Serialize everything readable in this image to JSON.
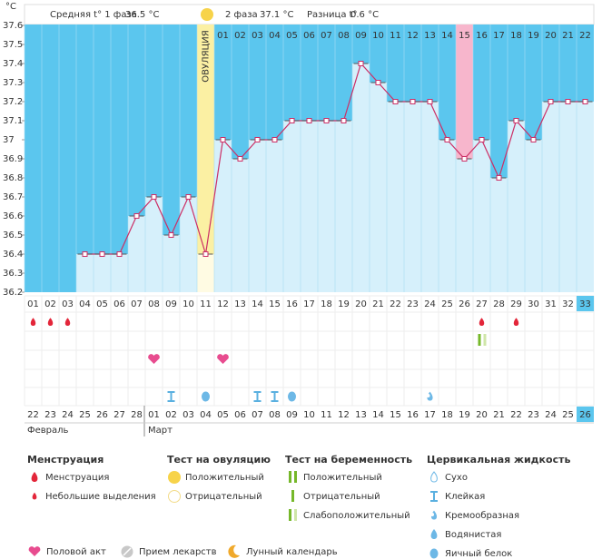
{
  "header": {
    "phase1_label": "Средняя t° 1 фаза",
    "phase1_value": "36.5 °C",
    "phase2_label": "2 фаза",
    "phase2_value": "37.1 °C",
    "diff_label": "Разница t°",
    "diff_value": "0.6 °C"
  },
  "chart_data": {
    "type": "line",
    "y_unit": "°C",
    "ovulation_label": "ОВУЛЯЦИЯ",
    "ovulation_day": "11",
    "highlight_day": "26",
    "today_day": "33",
    "today_date": "26",
    "categories": [
      "01",
      "02",
      "03",
      "04",
      "05",
      "06",
      "07",
      "08",
      "09",
      "10",
      "11",
      "12",
      "13",
      "14",
      "15",
      "16",
      "17",
      "18",
      "19",
      "20",
      "21",
      "22",
      "23",
      "24",
      "25",
      "26",
      "27",
      "28",
      "29",
      "30",
      "31",
      "32",
      "33"
    ],
    "dpo_labels": [
      null,
      null,
      null,
      null,
      null,
      null,
      null,
      null,
      null,
      null,
      null,
      "01",
      "02",
      "03",
      "04",
      "05",
      "06",
      "07",
      "08",
      "09",
      "10",
      "11",
      "12",
      "13",
      "14",
      "15",
      "16",
      "17",
      "18",
      "19",
      "20",
      "21",
      "22"
    ],
    "series": [
      {
        "name": "Температура",
        "color": "#cc2f66",
        "values": [
          null,
          null,
          null,
          36.4,
          36.4,
          36.4,
          36.6,
          36.7,
          36.5,
          36.7,
          36.4,
          37.0,
          36.9,
          37.0,
          37.0,
          37.1,
          37.1,
          37.1,
          37.1,
          37.4,
          37.3,
          37.2,
          37.2,
          37.2,
          37.0,
          36.9,
          37.0,
          36.8,
          37.1,
          37.0,
          37.2,
          37.2,
          37.2
        ]
      }
    ],
    "ylim": [
      36.2,
      37.6
    ],
    "yticks": [
      37.6,
      37.5,
      37.4,
      37.3,
      37.2,
      37.1,
      37,
      36.9,
      36.8,
      36.7,
      36.6,
      36.5,
      36.4,
      36.3,
      36.2
    ],
    "dates": [
      "22",
      "23",
      "24",
      "25",
      "26",
      "27",
      "28",
      "01",
      "02",
      "03",
      "04",
      "05",
      "06",
      "07",
      "08",
      "09",
      "10",
      "11",
      "12",
      "13",
      "14",
      "15",
      "16",
      "17",
      "18",
      "19",
      "20",
      "21",
      "22",
      "23",
      "24",
      "25",
      "26"
    ],
    "weekend": [
      false,
      false,
      false,
      false,
      true,
      true,
      false,
      false,
      false,
      false,
      false,
      true,
      true,
      false,
      false,
      false,
      false,
      false,
      true,
      true,
      false,
      false,
      false,
      false,
      false,
      true,
      true,
      false,
      false,
      false,
      false,
      false,
      false
    ],
    "months": [
      "Февраль",
      "Март"
    ],
    "events": {
      "bleeding": [
        "01",
        "02",
        "03",
        "27",
        "29"
      ],
      "pregnancy_test_faint": [
        "27"
      ],
      "intercourse": [
        "08",
        "12"
      ],
      "cervical_days": [
        "09",
        "11",
        "14",
        "15",
        "16",
        "24"
      ],
      "cervical_types": [
        "Клейкая",
        "Яичный белок",
        "Клейкая",
        "Клейкая",
        "Яичный белок",
        "Кремообразная"
      ]
    }
  },
  "legend": {
    "menstruation": {
      "title": "Менструация",
      "items": [
        "Менструация",
        "Небольшие выделения"
      ]
    },
    "ovulation_test": {
      "title": "Тест на овуляцию",
      "items": [
        "Положительный",
        "Отрицательный"
      ]
    },
    "pregnancy_test": {
      "title": "Тест на беременность",
      "items": [
        "Положительный",
        "Отрицательный",
        "Слабоположительный"
      ]
    },
    "cervical": {
      "title": "Цервикальная жидкость",
      "items": [
        "Сухо",
        "Клейкая",
        "Кремообразная",
        "Водянистая",
        "Яичный белок"
      ]
    },
    "other": [
      "Половой акт",
      "Прием лекарств",
      "Лунный календарь"
    ]
  }
}
